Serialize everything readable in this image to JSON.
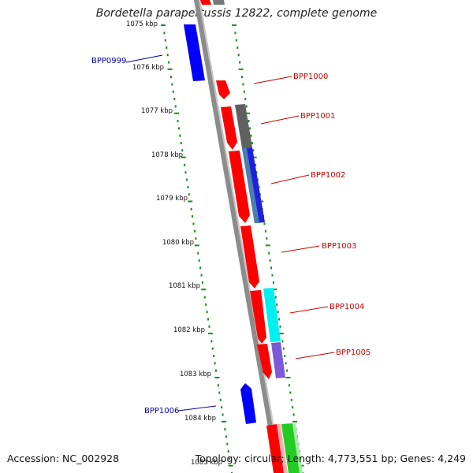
{
  "title": "Bordetella parapertussis 12822, complete genome",
  "footer": {
    "accession": "Accession: NC_002928",
    "topology": "Topology: circular; Length: 4,773,551 bp; Genes: 4,249"
  },
  "colors": {
    "forward_gene": "#ff0000",
    "reverse_gene": "#0000ff",
    "backbone": "#8c8c8c",
    "tick_dots": "#1a8c1a",
    "label_red": "#cc0000",
    "label_blue": "#0000aa"
  },
  "scale_labels": [
    "1075 kbp",
    "1076 kbp",
    "1077 kbp",
    "1078 kbp",
    "1079 kbp",
    "1080 kbp",
    "1081 kbp",
    "1082 kbp",
    "1083 kbp",
    "1084 kbp",
    "1085 kbp"
  ],
  "gene_labels": [
    {
      "text": "BPP0999",
      "color": "#0000aa"
    },
    {
      "text": "BPP1000",
      "color": "#cc0000"
    },
    {
      "text": "BPP1001",
      "color": "#cc0000"
    },
    {
      "text": "BPP1002",
      "color": "#cc0000"
    },
    {
      "text": "BPP1003",
      "color": "#cc0000"
    },
    {
      "text": "BPP1004",
      "color": "#cc0000"
    },
    {
      "text": "BPP1005",
      "color": "#cc0000"
    },
    {
      "text": "BPP1006",
      "color": "#0000aa"
    }
  ]
}
